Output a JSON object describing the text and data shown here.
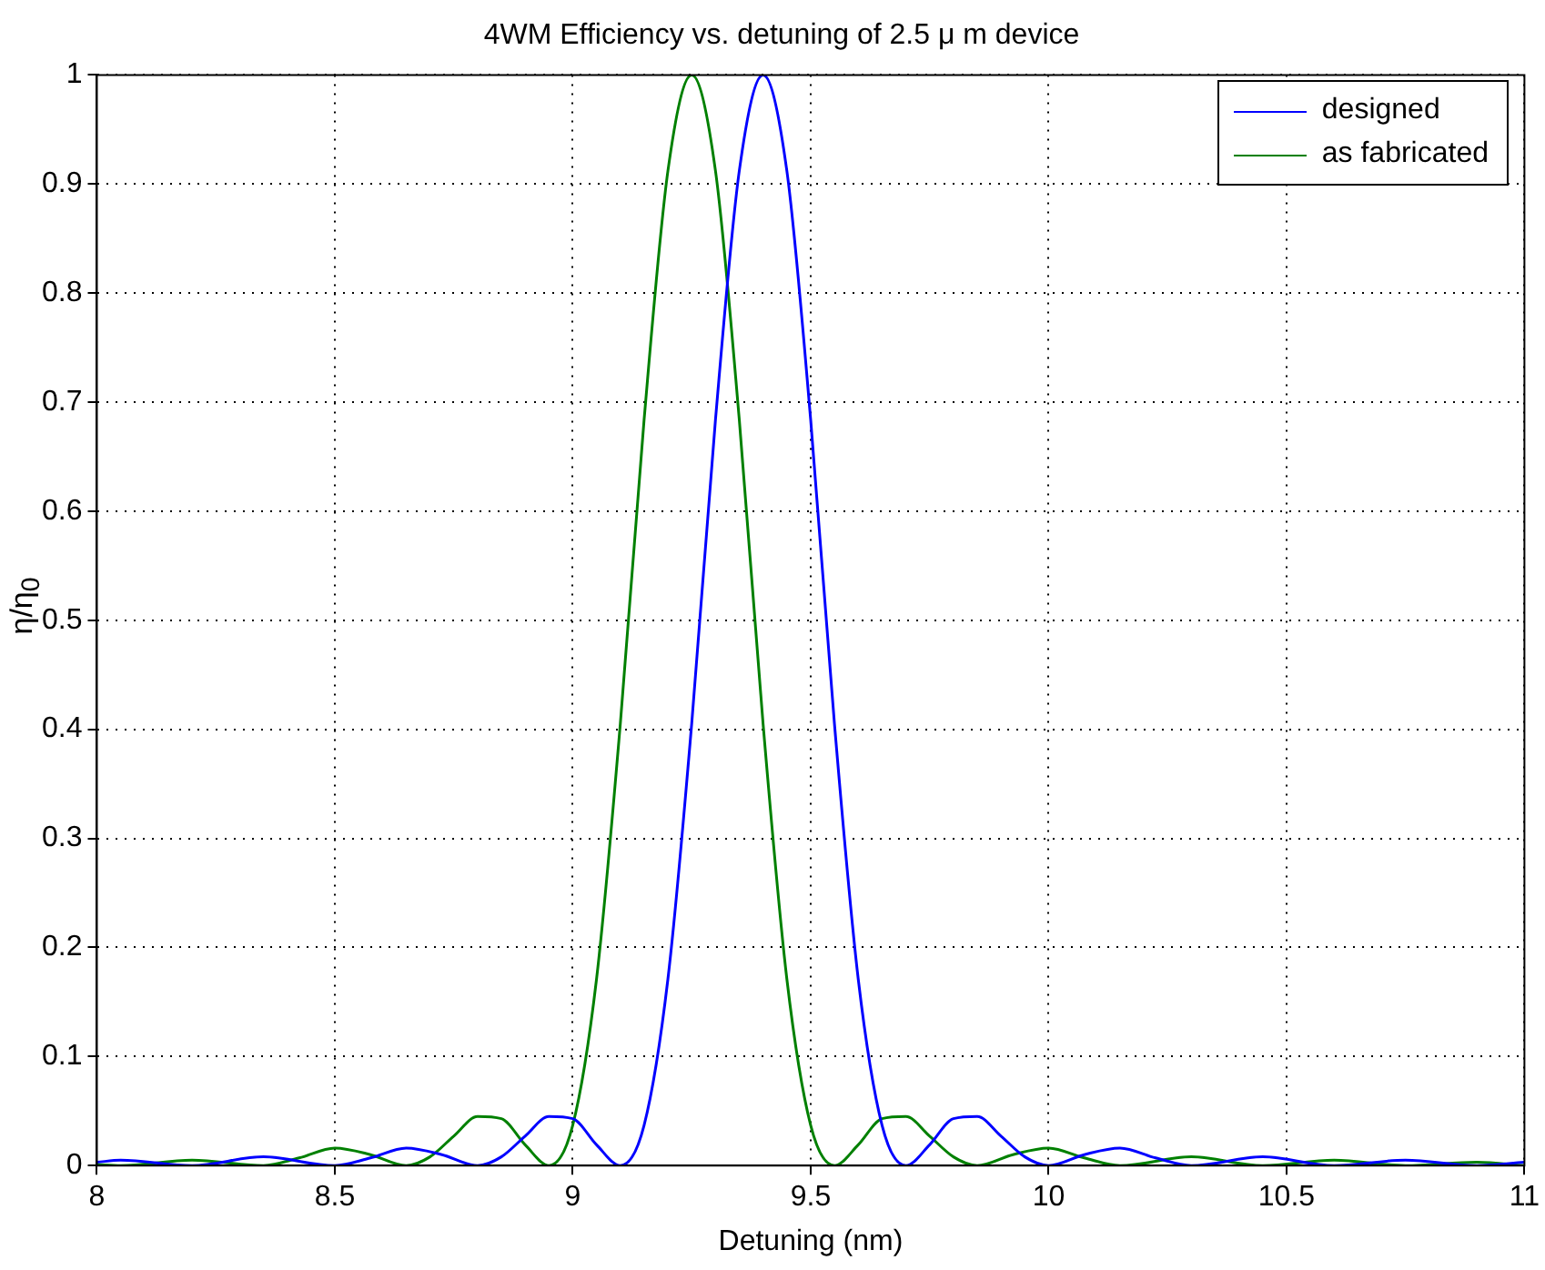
{
  "chart_data": {
    "type": "line",
    "title": "4WM Efficiency vs. detuning of 2.5 μ m device",
    "xlabel": "Detuning (nm)",
    "ylabel": "η/η$_{0}$",
    "xlim": [
      8,
      11
    ],
    "xticks": [
      8,
      8.5,
      9,
      9.5,
      10,
      10.5,
      11
    ],
    "ylim": [
      0,
      1
    ],
    "yticks": [
      0,
      0.1,
      0.2,
      0.3,
      0.4,
      0.5,
      0.6,
      0.7,
      0.8,
      0.9,
      1
    ],
    "grid": true,
    "legend": "top right",
    "line_style": "solid",
    "marker": "none",
    "series": [
      {
        "name": "designed",
        "color": "#0000ff",
        "x": [
          8.0,
          8.05,
          8.2,
          8.35,
          8.5,
          8.575,
          8.65,
          8.725,
          8.8,
          8.85,
          8.9,
          8.95,
          9.0,
          9.05,
          9.1,
          9.15,
          9.2,
          9.25,
          9.3,
          9.35,
          9.4,
          9.45,
          9.5,
          9.55,
          9.6,
          9.65,
          9.7,
          9.75,
          9.8,
          9.85,
          9.9,
          9.95,
          10.0,
          10.075,
          10.15,
          10.225,
          10.3,
          10.45,
          10.6,
          10.75,
          10.9,
          11.0
        ],
        "values": [
          0.003,
          0.005,
          0,
          0.008,
          0,
          0.007,
          0.016,
          0.01,
          0,
          0.008,
          0.027,
          0.045,
          0.043,
          0.019,
          0,
          0.037,
          0.171,
          0.405,
          0.684,
          0.912,
          1,
          0.912,
          0.684,
          0.405,
          0.171,
          0.037,
          0,
          0.019,
          0.043,
          0.045,
          0.027,
          0.008,
          0,
          0.01,
          0.016,
          0.007,
          0,
          0.008,
          0,
          0.005,
          0,
          0.003
        ]
      },
      {
        "name": "as fabricated",
        "color": "#008000",
        "x": [
          8.0,
          8.05,
          8.2,
          8.35,
          8.425,
          8.5,
          8.575,
          8.65,
          8.7,
          8.75,
          8.8,
          8.85,
          8.9,
          8.95,
          9.0,
          9.05,
          9.1,
          9.15,
          9.2,
          9.25,
          9.3,
          9.35,
          9.4,
          9.45,
          9.5,
          9.55,
          9.6,
          9.65,
          9.7,
          9.75,
          9.8,
          9.85,
          9.925,
          10.0,
          10.075,
          10.15,
          10.3,
          10.45,
          10.6,
          10.75,
          10.9,
          11.0
        ],
        "values": [
          0.001,
          0,
          0.005,
          0,
          0.007,
          0.016,
          0.01,
          0,
          0.008,
          0.027,
          0.045,
          0.043,
          0.019,
          0,
          0.037,
          0.171,
          0.405,
          0.684,
          0.912,
          1,
          0.912,
          0.684,
          0.405,
          0.171,
          0.037,
          0,
          0.019,
          0.043,
          0.045,
          0.027,
          0.008,
          0,
          0.01,
          0.016,
          0.007,
          0,
          0.008,
          0,
          0.005,
          0,
          0.003,
          0
        ]
      }
    ]
  }
}
